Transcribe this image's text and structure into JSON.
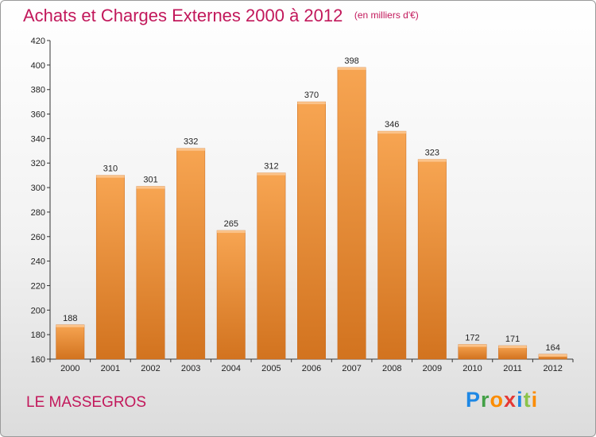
{
  "header": {
    "title": "Achats et Charges Externes 2000 à 2012",
    "unit": "(en milliers d'€)"
  },
  "footer": {
    "location": "LE MASSEGROS",
    "brand_letters": [
      {
        "char": "P",
        "color": "#1e88e5"
      },
      {
        "char": "r",
        "color": "#43a047"
      },
      {
        "char": "o",
        "color": "#fb8c00"
      },
      {
        "char": "x",
        "color": "#e53935"
      },
      {
        "char": "i",
        "color": "#1e88e5"
      },
      {
        "char": "t",
        "color": "#8bc34a"
      },
      {
        "char": "i",
        "color": "#fb8c00"
      }
    ]
  },
  "chart_data": {
    "type": "bar",
    "categories": [
      "2000",
      "2001",
      "2002",
      "2003",
      "2004",
      "2005",
      "2006",
      "2007",
      "2008",
      "2009",
      "2010",
      "2011",
      "2012"
    ],
    "values": [
      188,
      310,
      301,
      332,
      265,
      312,
      370,
      398,
      346,
      323,
      172,
      171,
      164
    ],
    "ylim": [
      160,
      420
    ],
    "yticks": [
      160,
      180,
      200,
      220,
      240,
      260,
      280,
      300,
      320,
      340,
      360,
      380,
      400,
      420
    ],
    "grid": false,
    "bar_color_top": "#f7a552",
    "bar_color_bottom": "#d2731f"
  }
}
